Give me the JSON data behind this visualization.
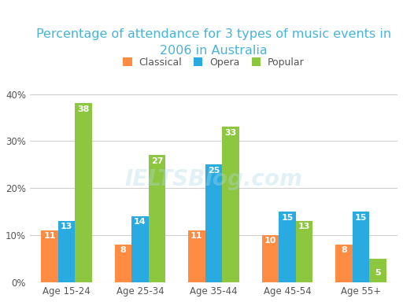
{
  "title": "Percentage of attendance for 3 types of music events in\n2006 in Australia",
  "categories": [
    "Age 15-24",
    "Age 25-34",
    "Age 35-44",
    "Age 45-54",
    "Age 55+"
  ],
  "series": {
    "Classical": [
      11,
      8,
      11,
      10,
      8
    ],
    "Opera": [
      13,
      14,
      25,
      15,
      15
    ],
    "Popular": [
      38,
      27,
      33,
      13,
      5
    ]
  },
  "colors": {
    "Classical": "#FF8C42",
    "Opera": "#29ABE2",
    "Popular": "#8DC63F"
  },
  "ylim": [
    0,
    42
  ],
  "yticks": [
    0,
    10,
    20,
    30,
    40
  ],
  "ytick_labels": [
    "0%",
    "10%",
    "20%",
    "30%",
    "40%"
  ],
  "bar_width": 0.23,
  "background_color": "#ffffff",
  "title_color": "#4ab3d8",
  "title_fontsize": 11.5,
  "label_fontsize": 8.5,
  "legend_fontsize": 9,
  "bar_label_fontsize": 8,
  "bar_label_color": "#ffffff",
  "grid_color": "#d0d0d0",
  "watermark_text": "IELTSBlog.com",
  "watermark_color": "#add8e6",
  "watermark_alpha": 0.35
}
